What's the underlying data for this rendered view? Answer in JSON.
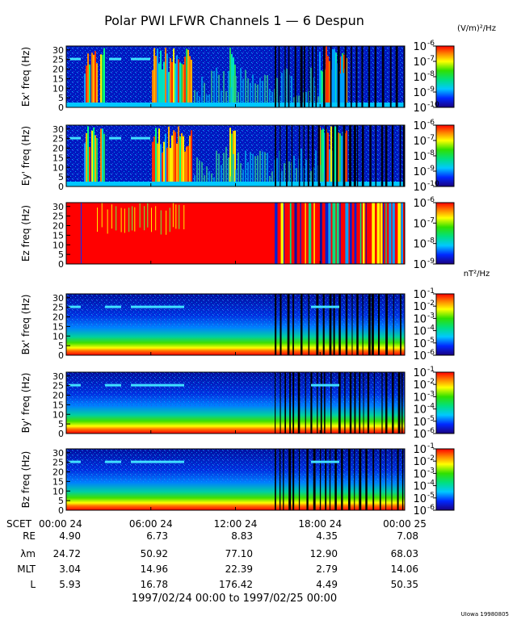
{
  "chart_data": {
    "type": "heatmap",
    "title": "Polar PWI LFWR Channels 1 — 6 Despun",
    "colorbar_units_e": "(V/m)²/Hz",
    "colorbar_units_b": "nT²/Hz",
    "x_tick_header": "SCET",
    "x_ticks": [
      "00:00 24",
      "06:00 24",
      "12:00 24",
      "18:00 24",
      "00:00 25"
    ],
    "y_ticks": [
      "0",
      "5",
      "10",
      "15",
      "20",
      "25",
      "30"
    ],
    "ylim": [
      0,
      32
    ],
    "panels": [
      {
        "ylabel": "Ex' freq (Hz)",
        "cbar_ticks": [
          "-6",
          "-7",
          "-8",
          "-9",
          "-10"
        ],
        "cbar_range": [
          -10,
          -6
        ]
      },
      {
        "ylabel": "Ey' freq (Hz)",
        "cbar_ticks": [
          "-6",
          "-7",
          "-8",
          "-9",
          "-10"
        ],
        "cbar_range": [
          -10,
          -6
        ]
      },
      {
        "ylabel": "Ez freq (Hz)",
        "cbar_ticks": [
          "-6",
          "-7",
          "-8",
          "-9"
        ],
        "cbar_range": [
          -9,
          -6
        ]
      },
      {
        "ylabel": "Bx' freq (Hz)",
        "cbar_ticks": [
          "-1",
          "-2",
          "-3",
          "-4",
          "-5",
          "-6"
        ],
        "cbar_range": [
          -6,
          -1
        ]
      },
      {
        "ylabel": "By' freq (Hz)",
        "cbar_ticks": [
          "-1",
          "-2",
          "-3",
          "-4",
          "-5",
          "-6"
        ],
        "cbar_range": [
          -6,
          -1
        ]
      },
      {
        "ylabel": "Bz freq (Hz)",
        "cbar_ticks": [
          "-1",
          "-2",
          "-3",
          "-4",
          "-5",
          "-6"
        ],
        "cbar_range": [
          -6,
          -1
        ]
      }
    ],
    "ephemeris": {
      "labels": [
        "RE",
        "λm",
        "MLT",
        "L"
      ],
      "rows": [
        [
          "4.90",
          "6.73",
          "8.83",
          "4.35",
          "7.08"
        ],
        [
          "24.72",
          "50.92",
          "77.10",
          "12.90",
          "68.03"
        ],
        [
          "3.04",
          "14.96",
          "22.39",
          "2.79",
          "14.06"
        ],
        [
          "5.93",
          "16.78",
          "176.42",
          "4.49",
          "50.35"
        ]
      ]
    },
    "date_range": "1997/02/24 00:00 to 1997/02/25 00:00",
    "credit": "UIowa 19980805"
  }
}
